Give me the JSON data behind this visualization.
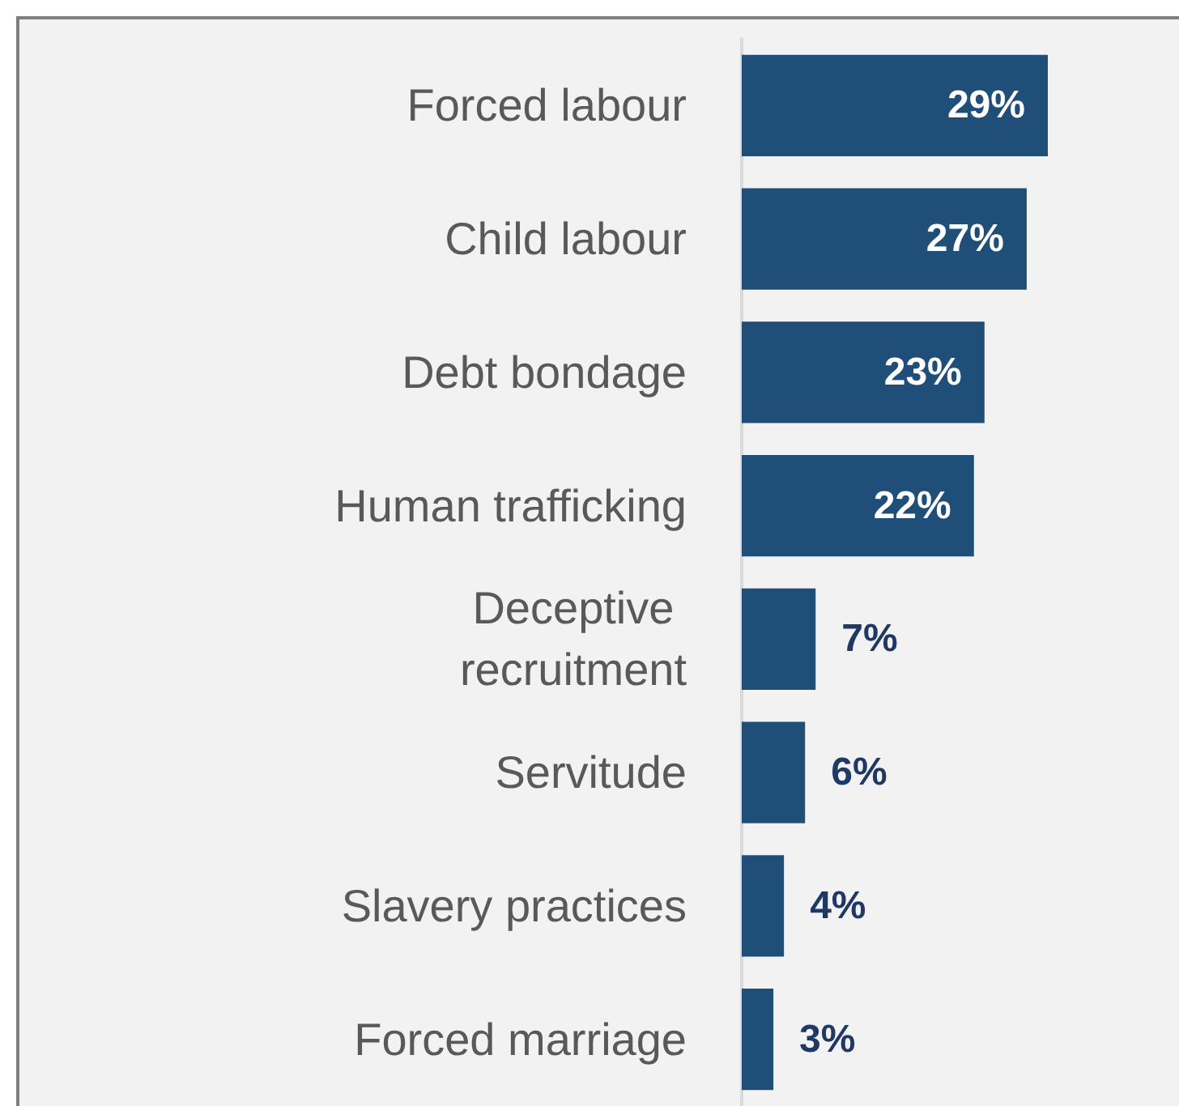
{
  "chart_data": {
    "type": "bar",
    "orientation": "horizontal",
    "categories": [
      "Forced labour",
      "Child labour",
      "Debt bondage",
      "Human trafficking",
      "Deceptive recruitment",
      "Servitude",
      "Slavery practices",
      "Forced marriage"
    ],
    "values": [
      29,
      27,
      23,
      22,
      7,
      6,
      4,
      3
    ],
    "color": "#1f4e79",
    "data_labels": true,
    "value_labels": [
      "29%",
      "27%",
      "23%",
      "22%",
      "7%",
      "6%",
      "4%",
      "3%"
    ]
  }
}
